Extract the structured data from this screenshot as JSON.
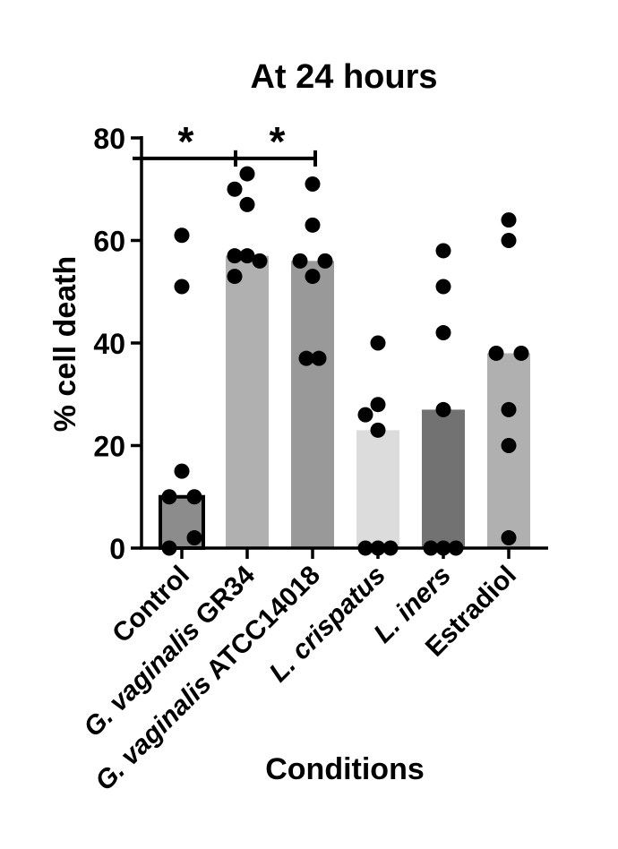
{
  "chart_data": {
    "type": "bar",
    "title": "At 24 hours",
    "xlabel": "Conditions",
    "ylabel": "% cell death",
    "ylim": [
      0,
      80
    ],
    "yticks": [
      0,
      20,
      40,
      60,
      80
    ],
    "categories": [
      {
        "parts": [
          {
            "t": "Control",
            "i": false
          }
        ]
      },
      {
        "parts": [
          {
            "t": "G. vaginalis",
            "i": true
          },
          {
            "t": " GR34",
            "i": false
          }
        ]
      },
      {
        "parts": [
          {
            "t": "G. vaginalis",
            "i": true
          },
          {
            "t": " ATCC14018",
            "i": false
          }
        ]
      },
      {
        "parts": [
          {
            "t": "L. crispatus",
            "i": true
          }
        ]
      },
      {
        "parts": [
          {
            "t": "L. iners",
            "i": true
          }
        ]
      },
      {
        "parts": [
          {
            "t": "Estradiol",
            "i": false
          }
        ]
      }
    ],
    "values": [
      10,
      57,
      56,
      23,
      27,
      38
    ],
    "bar_colors": [
      "#8c8c8c",
      "#b0b0b0",
      "#999999",
      "#dcdcdc",
      "#727272",
      "#b0b0b0"
    ],
    "bar_outlined": [
      true,
      false,
      false,
      false,
      false,
      false
    ],
    "points": [
      [
        {
          "x": 0,
          "y": 61
        },
        {
          "x": 0,
          "y": 51
        },
        {
          "x": 0,
          "y": 15
        },
        {
          "x": -1,
          "y": 10
        },
        {
          "x": 1,
          "y": 10
        },
        {
          "x": -1,
          "y": 0
        },
        {
          "x": 1,
          "y": 2
        }
      ],
      [
        {
          "x": 0,
          "y": 73
        },
        {
          "x": -1,
          "y": 70
        },
        {
          "x": 0,
          "y": 67
        },
        {
          "x": -1,
          "y": 57
        },
        {
          "x": 0,
          "y": 57
        },
        {
          "x": 1,
          "y": 56
        },
        {
          "x": -1,
          "y": 53
        }
      ],
      [
        {
          "x": 0,
          "y": 71
        },
        {
          "x": 0,
          "y": 63
        },
        {
          "x": -1,
          "y": 56
        },
        {
          "x": 1,
          "y": 56
        },
        {
          "x": 0,
          "y": 53
        },
        {
          "x": -0.5,
          "y": 37
        },
        {
          "x": 0.5,
          "y": 37
        }
      ],
      [
        {
          "x": 0,
          "y": 40
        },
        {
          "x": 0,
          "y": 28
        },
        {
          "x": -1,
          "y": 26
        },
        {
          "x": 0,
          "y": 23
        },
        {
          "x": -1,
          "y": 0
        },
        {
          "x": 0,
          "y": 0
        },
        {
          "x": 1,
          "y": 0
        }
      ],
      [
        {
          "x": 0,
          "y": 58
        },
        {
          "x": 0,
          "y": 51
        },
        {
          "x": 0,
          "y": 42
        },
        {
          "x": 0,
          "y": 27
        },
        {
          "x": -1,
          "y": 0
        },
        {
          "x": 0,
          "y": 0
        },
        {
          "x": 1,
          "y": 0
        }
      ],
      [
        {
          "x": 0,
          "y": 64
        },
        {
          "x": 0,
          "y": 60
        },
        {
          "x": -1,
          "y": 38
        },
        {
          "x": 1,
          "y": 38
        },
        {
          "x": 0,
          "y": 27
        },
        {
          "x": 0,
          "y": 20
        },
        {
          "x": 0,
          "y": 2
        }
      ]
    ],
    "significance": [
      {
        "from": 0,
        "to": 1,
        "y": 76,
        "label": "*"
      },
      {
        "from": 1,
        "to": 2,
        "y": 76,
        "label": "*"
      }
    ],
    "colors": {
      "points": "#000000",
      "axis": "#000000"
    }
  }
}
